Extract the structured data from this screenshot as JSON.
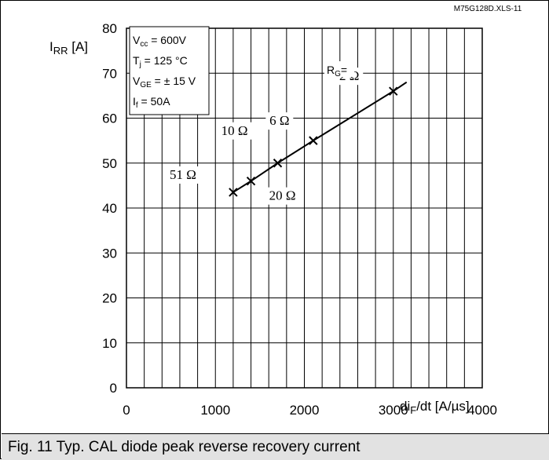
{
  "chart_data": {
    "type": "line",
    "ref_code": "M75G128D.XLS-11",
    "ylabel_main": "I",
    "ylabel_sub": "RR",
    "ylabel_unit": " [A]",
    "xlabel_main": "di",
    "xlabel_sub": "F",
    "xlabel_unit": "/dt [A/µs]",
    "xlim": [
      0,
      4000
    ],
    "ylim": [
      0,
      80
    ],
    "x_ticks": [
      "0",
      "1000",
      "2000",
      "3000",
      "4000"
    ],
    "y_ticks": [
      "0",
      "10",
      "20",
      "30",
      "40",
      "50",
      "60",
      "70",
      "80"
    ],
    "grid": true,
    "conditions": [
      {
        "main": "V",
        "sub": "cc",
        "rest": " = 600V"
      },
      {
        "main": "T",
        "sub": "j",
        "rest": " = 125 °C"
      },
      {
        "main": "V",
        "sub": "GE",
        "rest": " = ± 15 V"
      },
      {
        "main": "I",
        "sub": "f",
        "rest": " =  50A"
      }
    ],
    "rg_label_main": "R",
    "rg_label_sub": "G",
    "rg_label_rest": "=",
    "series": [
      {
        "x": [
          1200,
          1400,
          1700,
          2100,
          3000
        ],
        "y": [
          43.5,
          46,
          50,
          55,
          66
        ],
        "line_end": [
          3150,
          68
        ],
        "point_labels": [
          "51 Ω",
          "20 Ω",
          "10 Ω",
          "6 Ω",
          "2 Ω"
        ]
      }
    ]
  },
  "caption": "Fig. 11 Typ. CAL diode peak reverse recovery current"
}
